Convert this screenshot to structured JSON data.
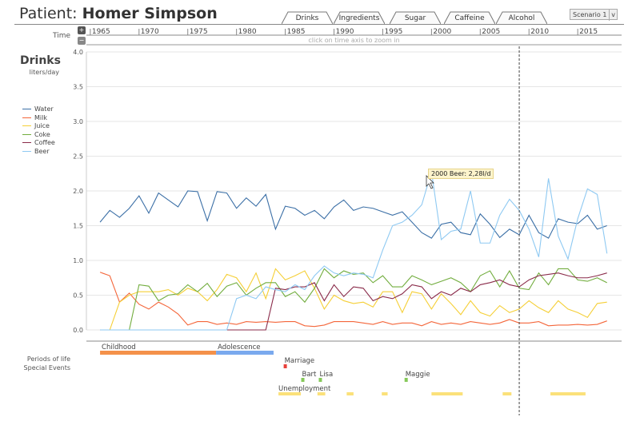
{
  "header": {
    "prefix": "Patient:",
    "name": "Homer Simpson"
  },
  "tabs": [
    {
      "label": "Drinks",
      "active": true
    },
    {
      "label": "Ingredients"
    },
    {
      "label": "Sugar"
    },
    {
      "label": "Caffeine"
    },
    {
      "label": "Alcohol"
    }
  ],
  "scenario": {
    "value": "Scenario 1",
    "arrow": "v"
  },
  "time": {
    "label": "Time",
    "hint": "click on time axis to zoom in",
    "zoom_in_icon": "magnifier-plus",
    "zoom_out_icon": "magnifier-minus"
  },
  "tooltip": "2000 Beer: 2,28l/d",
  "chart_data": {
    "type": "line",
    "title": "Drinks",
    "ylabel": "liters/day",
    "ylim": [
      0,
      4.0
    ],
    "yticks": [
      "0.0",
      "0.5",
      "1.0",
      "1.5",
      "2.0",
      "2.5",
      "3.0",
      "3.5",
      "4.0"
    ],
    "xticks": [
      "1965",
      "1970",
      "1975",
      "1980",
      "1985",
      "1990",
      "1995",
      "2000",
      "2005",
      "2010",
      "2015"
    ],
    "xlim": [
      1964.6,
      2019.5
    ],
    "x_start": 1966,
    "grid": true,
    "legend_position": "left",
    "marker_year": 2009,
    "series": [
      {
        "name": "Water",
        "color": "#3b6fa6",
        "values": [
          1.55,
          1.72,
          1.62,
          1.75,
          1.93,
          1.68,
          1.97,
          1.87,
          1.77,
          2.0,
          1.99,
          1.57,
          1.99,
          1.97,
          1.75,
          1.9,
          1.78,
          1.95,
          1.45,
          1.78,
          1.75,
          1.65,
          1.72,
          1.6,
          1.77,
          1.87,
          1.72,
          1.77,
          1.75,
          1.7,
          1.65,
          1.7,
          1.55,
          1.4,
          1.32,
          1.52,
          1.55,
          1.4,
          1.37,
          1.67,
          1.52,
          1.33,
          1.45,
          1.37,
          1.65,
          1.4,
          1.32,
          1.6,
          1.55,
          1.53,
          1.65,
          1.45,
          1.5
        ]
      },
      {
        "name": "Milk",
        "color": "#f4663a",
        "values": [
          0.83,
          0.78,
          0.4,
          0.53,
          0.37,
          0.3,
          0.4,
          0.33,
          0.23,
          0.07,
          0.12,
          0.12,
          0.08,
          0.1,
          0.08,
          0.12,
          0.11,
          0.12,
          0.11,
          0.12,
          0.12,
          0.06,
          0.05,
          0.07,
          0.12,
          0.12,
          0.12,
          0.1,
          0.08,
          0.12,
          0.08,
          0.1,
          0.1,
          0.06,
          0.12,
          0.08,
          0.1,
          0.08,
          0.12,
          0.1,
          0.08,
          0.1,
          0.15,
          0.1,
          0.1,
          0.12,
          0.06,
          0.07,
          0.07,
          0.08,
          0.07,
          0.08,
          0.13
        ]
      },
      {
        "name": "Juice",
        "color": "#f5cf36",
        "values": [
          0,
          0,
          0.4,
          0.5,
          0.55,
          0.55,
          0.55,
          0.58,
          0.5,
          0.6,
          0.55,
          0.42,
          0.58,
          0.8,
          0.75,
          0.55,
          0.82,
          0.45,
          0.88,
          0.72,
          0.78,
          0.85,
          0.6,
          0.3,
          0.5,
          0.42,
          0.38,
          0.4,
          0.33,
          0.55,
          0.55,
          0.25,
          0.55,
          0.52,
          0.3,
          0.52,
          0.38,
          0.22,
          0.42,
          0.25,
          0.2,
          0.35,
          0.25,
          0.3,
          0.42,
          0.32,
          0.25,
          0.42,
          0.3,
          0.25,
          0.18,
          0.38,
          0.4
        ]
      },
      {
        "name": "Coke",
        "color": "#72ad3e",
        "values": [
          0,
          0,
          0,
          0,
          0.65,
          0.63,
          0.42,
          0.5,
          0.52,
          0.65,
          0.55,
          0.67,
          0.48,
          0.63,
          0.68,
          0.5,
          0.6,
          0.68,
          0.68,
          0.48,
          0.55,
          0.4,
          0.6,
          0.88,
          0.75,
          0.85,
          0.8,
          0.82,
          0.68,
          0.78,
          0.62,
          0.62,
          0.78,
          0.72,
          0.65,
          0.7,
          0.75,
          0.68,
          0.55,
          0.78,
          0.85,
          0.62,
          0.85,
          0.6,
          0.58,
          0.82,
          0.65,
          0.88,
          0.88,
          0.72,
          0.7,
          0.75,
          0.68
        ]
      },
      {
        "name": "Coffee",
        "color": "#8a2b4a",
        "values": [
          0,
          0,
          0,
          0,
          0,
          0,
          0,
          0,
          0,
          0,
          0,
          0,
          0,
          0,
          0,
          0,
          0,
          0,
          0.6,
          0.58,
          0.62,
          0.62,
          0.68,
          0.42,
          0.65,
          0.48,
          0.62,
          0.6,
          0.42,
          0.48,
          0.45,
          0.52,
          0.65,
          0.62,
          0.45,
          0.55,
          0.5,
          0.6,
          0.55,
          0.65,
          0.68,
          0.72,
          0.65,
          0.62,
          0.72,
          0.78,
          0.8,
          0.82,
          0.78,
          0.75,
          0.75,
          0.78,
          0.82
        ]
      },
      {
        "name": "Beer",
        "color": "#8ec9f2",
        "values": [
          0,
          0,
          0,
          0,
          0,
          0,
          0,
          0,
          0,
          0,
          0,
          0,
          0,
          0,
          0.45,
          0.5,
          0.45,
          0.62,
          0.58,
          0.55,
          0.65,
          0.58,
          0.78,
          0.92,
          0.82,
          0.78,
          0.82,
          0.8,
          0.75,
          1.15,
          1.5,
          1.55,
          1.65,
          1.8,
          2.28,
          1.3,
          1.42,
          1.45,
          2.0,
          1.25,
          1.25,
          1.65,
          1.88,
          1.72,
          1.45,
          1.05,
          2.18,
          1.35,
          1.02,
          1.6,
          2.03,
          1.95,
          1.1
        ]
      }
    ]
  },
  "timeline": {
    "periods_label": "Periods of life",
    "events_label": "Special Events",
    "periods": [
      {
        "label": "Childhood",
        "start": 1966,
        "end": 1977.9,
        "color": "#f4914a"
      },
      {
        "label": "Adolescence",
        "start": 1977.9,
        "end": 1983.8,
        "color": "#7aa9ee"
      }
    ],
    "events": [
      {
        "label": "Marriage",
        "year": 1985,
        "color": "#e8403a",
        "row": 0
      },
      {
        "label": "Bart",
        "year": 1986.8,
        "color": "#86c95a",
        "row": 1
      },
      {
        "label": "Lisa",
        "year": 1988.6,
        "color": "#86c95a",
        "row": 1
      },
      {
        "label": "Maggie",
        "year": 1997.4,
        "color": "#86c95a",
        "row": 1
      }
    ],
    "unemployment": {
      "label": "Unemployment",
      "color": "#fbe17a",
      "ranges": [
        [
          1984.3,
          1986.6
        ],
        [
          1988.3,
          1989.1
        ],
        [
          1991.3,
          1992.0
        ],
        [
          1994.9,
          1995.5
        ],
        [
          2000.0,
          2003.2
        ],
        [
          2007.3,
          2008.2
        ],
        [
          2012.2,
          2015.8
        ]
      ]
    }
  }
}
